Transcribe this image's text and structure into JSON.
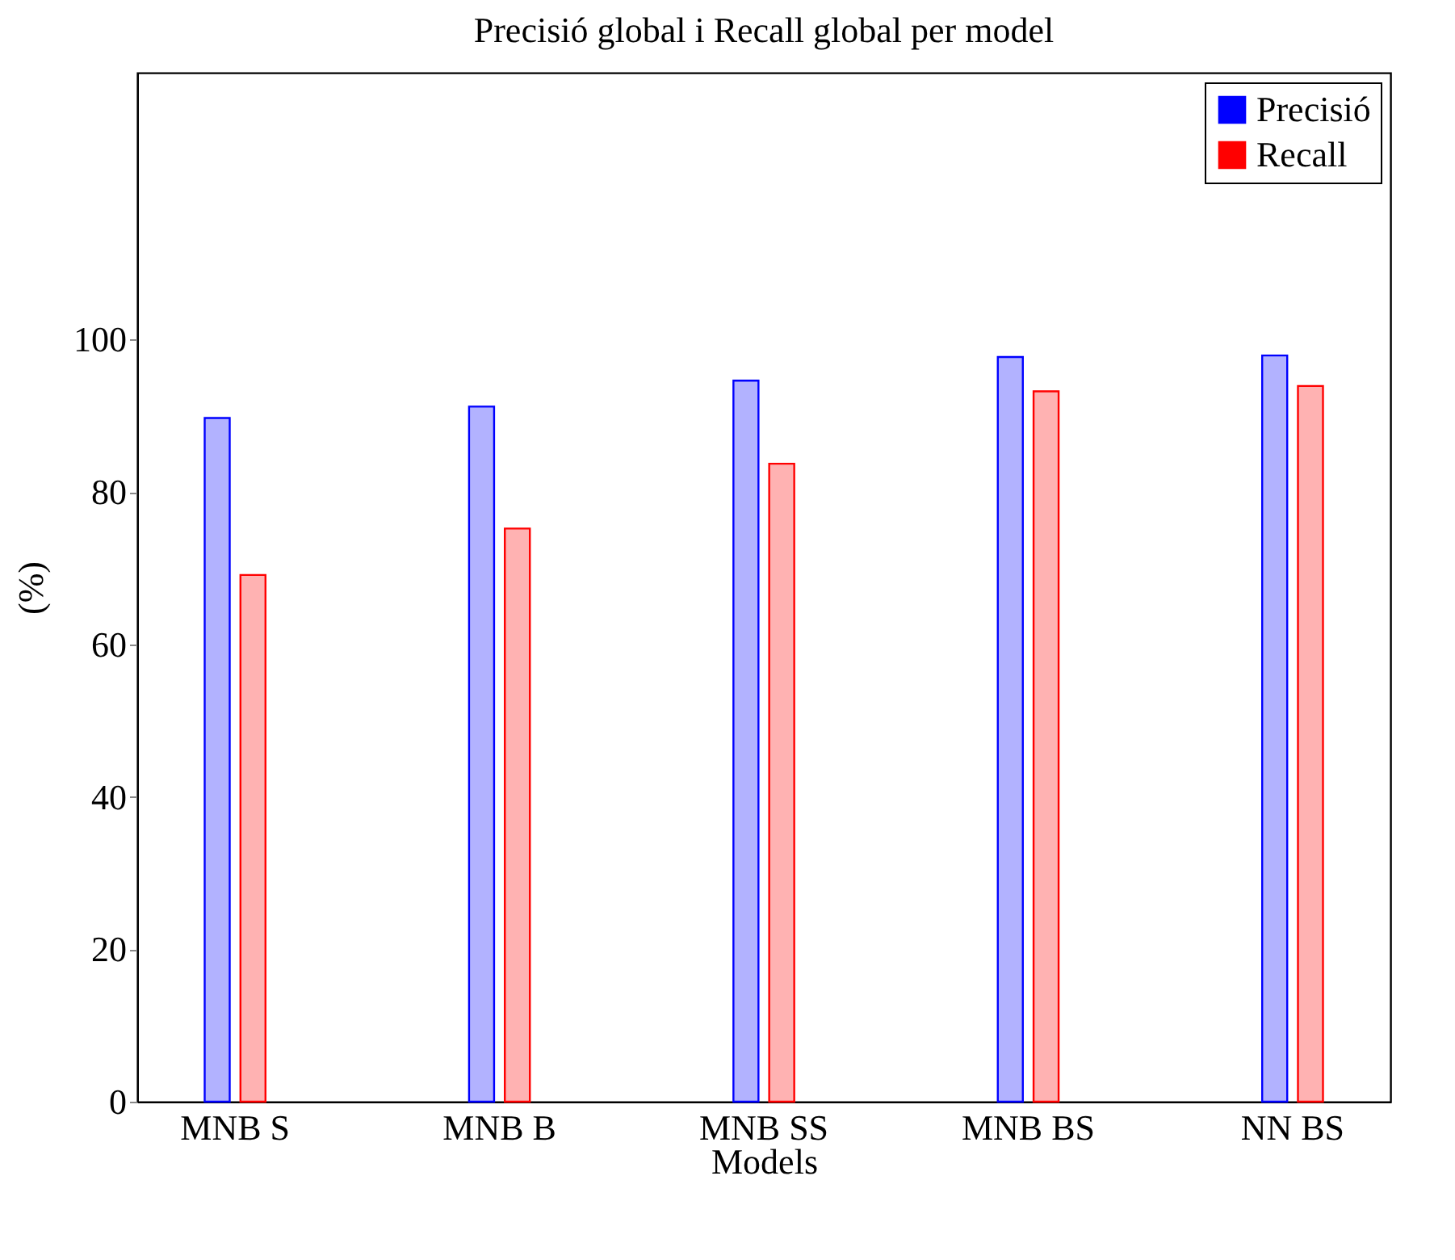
{
  "chart_data": {
    "type": "bar",
    "title": "Precisió global i Recall global per model",
    "xlabel": "Models",
    "ylabel": "(%)",
    "categories": [
      "MNB S",
      "MNB B",
      "MNB SS",
      "MNB BS",
      "NN BS"
    ],
    "series": [
      {
        "name": "Precisió",
        "color": "#0000ff",
        "values": [
          89.7,
          91.2,
          94.6,
          97.7,
          97.9
        ]
      },
      {
        "name": "Recall",
        "color": "#ff0000",
        "values": [
          69.1,
          75.2,
          83.7,
          93.2,
          93.9
        ]
      }
    ],
    "ylim": [
      0,
      135
    ],
    "yticks": [
      0,
      20,
      40,
      60,
      80,
      100
    ],
    "grid": false,
    "legend": "top right"
  }
}
